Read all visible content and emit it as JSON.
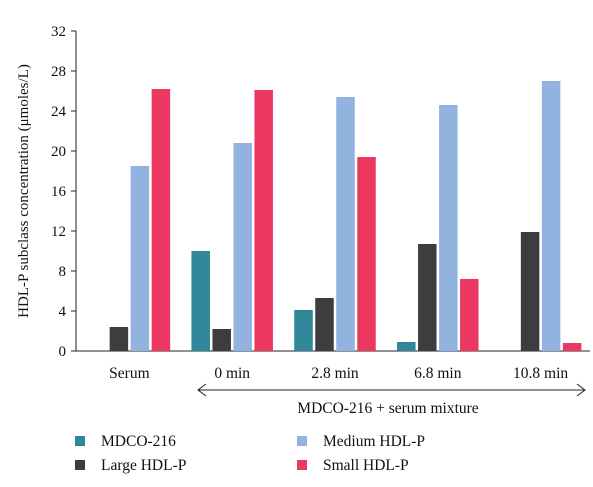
{
  "chart_data": {
    "type": "bar",
    "ylabel": "HDL-P subclass concentration (μmoles/L)",
    "ylim": [
      0,
      32
    ],
    "yticks": [
      0,
      4,
      8,
      12,
      16,
      20,
      24,
      28,
      32
    ],
    "categories": [
      "Serum",
      "0 min",
      "2.8 min",
      "6.8 min",
      "10.8 min"
    ],
    "group_label": "MDCO-216 + serum mixture",
    "series": [
      {
        "name": "MDCO-216",
        "color": "#2f8799",
        "values": [
          0,
          10.0,
          4.1,
          0.9,
          0
        ]
      },
      {
        "name": "Large HDL-P",
        "color": "#3d3d3f",
        "values": [
          2.4,
          2.2,
          5.3,
          10.7,
          11.9
        ]
      },
      {
        "name": "Medium HDL-P",
        "color": "#92b2df",
        "values": [
          18.5,
          20.8,
          25.4,
          24.6,
          27.0
        ]
      },
      {
        "name": "Small HDL-P",
        "color": "#ea3860",
        "values": [
          26.2,
          26.1,
          19.4,
          7.2,
          0.8
        ]
      }
    ],
    "legend": [
      {
        "label": "MDCO-216",
        "color": "#2f8799"
      },
      {
        "label": "Medium HDL-P",
        "color": "#92b2df"
      },
      {
        "label": "Large HDL-P",
        "color": "#3d3d3f"
      },
      {
        "label": "Small HDL-P",
        "color": "#ea3860"
      }
    ],
    "legend_placement": "bottom",
    "grid": false
  }
}
